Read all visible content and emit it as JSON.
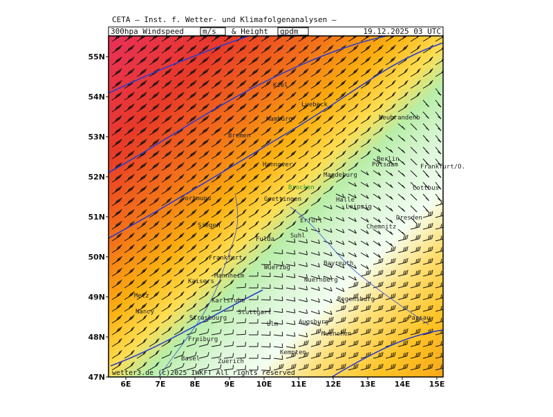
{
  "header": {
    "institute": "CETA — Inst. f. Wetter- und Klimafolgenanalysen —",
    "product": "300hpa Windspeed",
    "unit1": "m/s",
    "joiner": "& Height",
    "unit2": "gpdm",
    "valid": "19.12.2025 03 UTC"
  },
  "axes": {
    "lat_labels": [
      "47N",
      "48N",
      "49N",
      "50N",
      "51N",
      "52N",
      "53N",
      "54N",
      "55N"
    ],
    "lon_labels": [
      "6E",
      "7E",
      "8E",
      "9E",
      "10E",
      "11E",
      "12E",
      "13E",
      "14E",
      "15E"
    ]
  },
  "cities": [
    "Kiel",
    "Luebeck",
    "Hamburg",
    "Bremen",
    "Hannover",
    "Berlin",
    "Potsdam",
    "Magdeburg",
    "Brocken",
    "Goettingen",
    "Halle",
    "Leipzig",
    "Dresden",
    "Erfurt",
    "Chemnitz",
    "Fulda",
    "Suhl",
    "Frankfurt",
    "Bayreuth",
    "Wuerzbg",
    "Nuernberg",
    "Mannheim",
    "Karlsruhe",
    "Regensburg",
    "Stuttgart",
    "Augsburg",
    "Ulm",
    "Muenchen",
    "Strasbourg",
    "Freiburg",
    "Metz",
    "Nancy",
    "Basel",
    "Zuerich",
    "Kempten",
    "Cottbus",
    "Frankfurt/O.",
    "Neubrandenb",
    "Dortmund",
    "Siegen",
    "Kaisers",
    "Passau"
  ],
  "footer": "wetter3.de  (c)2025 IWKFT All rights reserved"
}
